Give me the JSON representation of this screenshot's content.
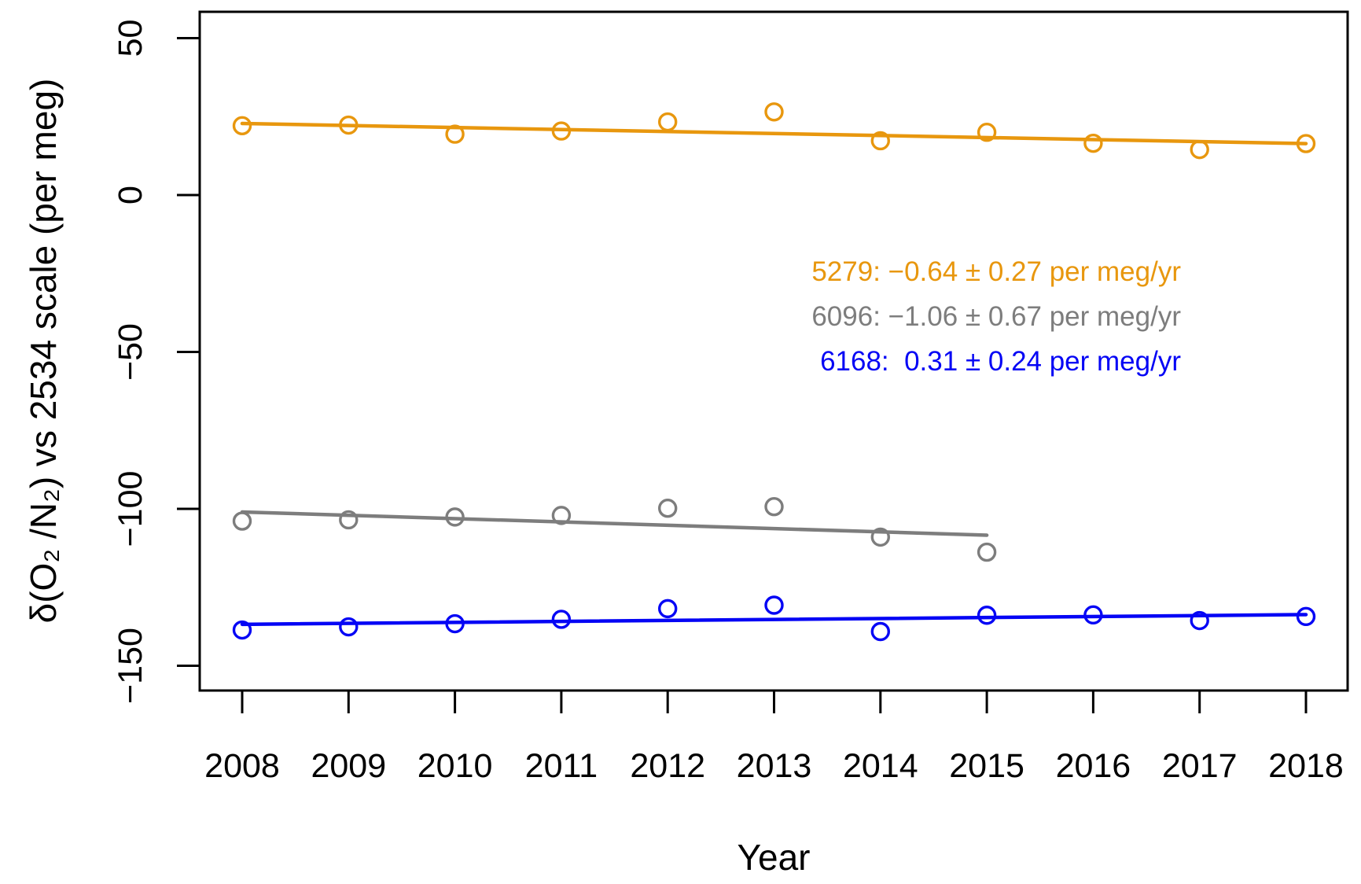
{
  "chart_data": {
    "type": "scatter",
    "title": "",
    "xlabel": "Year",
    "ylabel": "δ(O₂ /N₂) vs 2534 scale (per meg)",
    "grid": false,
    "legend_position": "middle-right",
    "xlim": [
      2007.6,
      2018.4
    ],
    "ylim": [
      -158,
      58
    ],
    "x_ticks": [
      {
        "v": 2008,
        "label": "2008"
      },
      {
        "v": 2009,
        "label": "2009"
      },
      {
        "v": 2010,
        "label": "2010"
      },
      {
        "v": 2011,
        "label": "2011"
      },
      {
        "v": 2012,
        "label": "2012"
      },
      {
        "v": 2013,
        "label": "2013"
      },
      {
        "v": 2014,
        "label": "2014"
      },
      {
        "v": 2015,
        "label": "2015"
      },
      {
        "v": 2016,
        "label": "2016"
      },
      {
        "v": 2017,
        "label": "2017"
      },
      {
        "v": 2018,
        "label": "2018"
      }
    ],
    "y_ticks": [
      {
        "v": 50,
        "label": "50"
      },
      {
        "v": 0,
        "label": "0"
      },
      {
        "v": -50,
        "label": "−50"
      },
      {
        "v": -100,
        "label": "−100"
      },
      {
        "v": -150,
        "label": "−150"
      }
    ],
    "series": [
      {
        "id": "5279",
        "color": "#E8970E",
        "marker": "open-circle",
        "x": [
          2008,
          2009,
          2010,
          2011,
          2012,
          2013,
          2014,
          2015,
          2016,
          2017,
          2018
        ],
        "y": [
          22.1,
          22.3,
          19.4,
          20.4,
          23.3,
          26.5,
          17.3,
          20.0,
          16.5,
          14.5,
          16.4
        ],
        "trend": {
          "x": [
            2008,
            2018
          ],
          "y": [
            22.8,
            16.4
          ]
        },
        "slope": -0.64,
        "slope_err": 0.27,
        "slope_units": "per meg/yr",
        "legend": "5279: −0.64 ± 0.27 per meg/yr"
      },
      {
        "id": "6096",
        "color": "#7D7D7D",
        "marker": "open-circle",
        "x": [
          2008,
          2009,
          2010,
          2011,
          2012,
          2013,
          2014,
          2015
        ],
        "y": [
          -103.9,
          -103.5,
          -102.6,
          -102.1,
          -99.8,
          -99.3,
          -109.0,
          -113.8
        ],
        "trend": {
          "x": [
            2008,
            2015
          ],
          "y": [
            -101.0,
            -108.4
          ]
        },
        "slope": -1.06,
        "slope_err": 0.67,
        "slope_units": "per meg/yr",
        "legend": "6096: −1.06 ± 0.67 per meg/yr"
      },
      {
        "id": "6168",
        "color": "#0505F5",
        "marker": "open-circle",
        "x": [
          2008,
          2009,
          2010,
          2011,
          2012,
          2013,
          2014,
          2015,
          2016,
          2017,
          2018
        ],
        "y": [
          -138.6,
          -137.6,
          -136.6,
          -135.2,
          -131.8,
          -130.7,
          -139.1,
          -133.9,
          -133.8,
          -135.6,
          -134.3
        ],
        "trend": {
          "x": [
            2008,
            2018
          ],
          "y": [
            -136.8,
            -133.7
          ]
        },
        "slope": 0.31,
        "slope_err": 0.24,
        "slope_units": "per meg/yr",
        "legend": "6168:  0.31 ± 0.24 per meg/yr"
      }
    ]
  }
}
